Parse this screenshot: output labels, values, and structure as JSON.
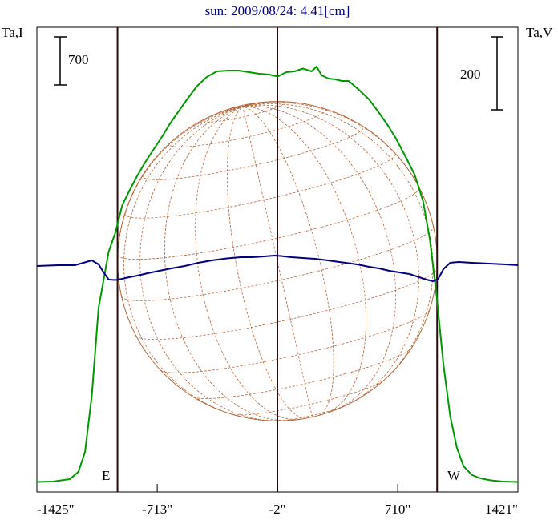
{
  "chart_data": {
    "type": "line",
    "title": "sun: 2009/08/24: 4.41[cm]",
    "ylabel_left": "Ta,I",
    "ylabel_right": "Ta,V",
    "scale_bar_left": "700",
    "scale_bar_right": "200",
    "x_ticks": [
      {
        "value": -1425,
        "label": "-1425\""
      },
      {
        "value": -713,
        "label": "-713\""
      },
      {
        "value": -2,
        "label": "-2\""
      },
      {
        "value": 710,
        "label": "710\""
      },
      {
        "value": 1421,
        "label": "1421\""
      }
    ],
    "limb_labels": {
      "east": "E",
      "west": "W"
    },
    "xlim": [
      -1425,
      1421
    ],
    "limb_positions": [
      -948,
      -2,
      943
    ],
    "colors": {
      "stokes_i": "#009900",
      "stokes_v": "#000080",
      "disk": "#b5673a",
      "axis": "#000000",
      "title": "#000080",
      "limb_line": "#2a0a0a"
    },
    "series": [
      {
        "name": "I",
        "values": [
          [
            -1425,
            25
          ],
          [
            -1330,
            30
          ],
          [
            -1230,
            60
          ],
          [
            -1180,
            150
          ],
          [
            -1140,
            400
          ],
          [
            -1100,
            1100
          ],
          [
            -1060,
            2200
          ],
          [
            -1000,
            2900
          ],
          [
            -960,
            3140
          ],
          [
            -920,
            3480
          ],
          [
            -880,
            3650
          ],
          [
            -830,
            3850
          ],
          [
            -780,
            4030
          ],
          [
            -720,
            4220
          ],
          [
            -680,
            4350
          ],
          [
            -640,
            4490
          ],
          [
            -590,
            4640
          ],
          [
            -540,
            4790
          ],
          [
            -480,
            4960
          ],
          [
            -420,
            5080
          ],
          [
            -360,
            5150
          ],
          [
            -290,
            5160
          ],
          [
            -230,
            5160
          ],
          [
            -170,
            5140
          ],
          [
            -110,
            5120
          ],
          [
            -50,
            5110
          ],
          [
            0,
            5085
          ],
          [
            50,
            5140
          ],
          [
            100,
            5150
          ],
          [
            150,
            5185
          ],
          [
            200,
            5150
          ],
          [
            230,
            5210
          ],
          [
            260,
            5100
          ],
          [
            300,
            5060
          ],
          [
            340,
            5050
          ],
          [
            380,
            5030
          ],
          [
            420,
            5030
          ],
          [
            480,
            4920
          ],
          [
            540,
            4800
          ],
          [
            590,
            4660
          ],
          [
            650,
            4480
          ],
          [
            700,
            4310
          ],
          [
            760,
            4070
          ],
          [
            810,
            3860
          ],
          [
            860,
            3530
          ],
          [
            900,
            3050
          ],
          [
            940,
            2350
          ],
          [
            980,
            1500
          ],
          [
            1020,
            850
          ],
          [
            1060,
            450
          ],
          [
            1100,
            220
          ],
          [
            1150,
            110
          ],
          [
            1200,
            70
          ],
          [
            1260,
            45
          ],
          [
            1330,
            30
          ],
          [
            1421,
            25
          ]
        ]
      },
      {
        "name": "V",
        "values": [
          [
            -1425,
            2720
          ],
          [
            -1300,
            2730
          ],
          [
            -1200,
            2730
          ],
          [
            -1150,
            2760
          ],
          [
            -1100,
            2790
          ],
          [
            -1060,
            2740
          ],
          [
            -1030,
            2640
          ],
          [
            -1000,
            2550
          ],
          [
            -960,
            2545
          ],
          [
            -920,
            2560
          ],
          [
            -880,
            2580
          ],
          [
            -830,
            2600
          ],
          [
            -770,
            2630
          ],
          [
            -700,
            2660
          ],
          [
            -630,
            2690
          ],
          [
            -550,
            2720
          ],
          [
            -470,
            2760
          ],
          [
            -390,
            2790
          ],
          [
            -300,
            2815
          ],
          [
            -220,
            2830
          ],
          [
            -150,
            2830
          ],
          [
            -80,
            2840
          ],
          [
            -20,
            2850
          ],
          [
            20,
            2845
          ],
          [
            80,
            2830
          ],
          [
            150,
            2820
          ],
          [
            220,
            2810
          ],
          [
            280,
            2795
          ],
          [
            330,
            2780
          ],
          [
            400,
            2760
          ],
          [
            470,
            2740
          ],
          [
            540,
            2710
          ],
          [
            600,
            2690
          ],
          [
            660,
            2660
          ],
          [
            720,
            2640
          ],
          [
            780,
            2620
          ],
          [
            830,
            2585
          ],
          [
            880,
            2550
          ],
          [
            920,
            2530
          ],
          [
            950,
            2560
          ],
          [
            980,
            2680
          ],
          [
            1020,
            2760
          ],
          [
            1070,
            2770
          ],
          [
            1150,
            2760
          ],
          [
            1250,
            2750
          ],
          [
            1350,
            2740
          ],
          [
            1421,
            2730
          ]
        ]
      }
    ]
  }
}
